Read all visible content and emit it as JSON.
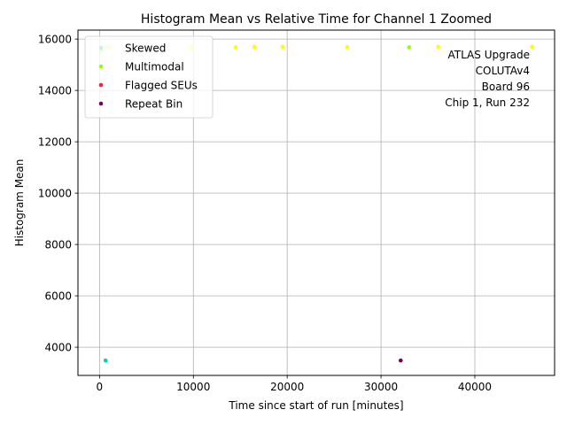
{
  "chart_data": {
    "type": "scatter",
    "title": "Histogram Mean vs Relative Time for Channel 1 Zoomed",
    "xlabel": "Time since start of run [minutes]",
    "ylabel": "Histogram Mean",
    "xlim": [
      -2300,
      48500
    ],
    "ylim": [
      2900,
      16350
    ],
    "xticks": [
      0,
      10000,
      20000,
      30000,
      40000
    ],
    "yticks": [
      4000,
      6000,
      8000,
      10000,
      12000,
      14000,
      16000
    ],
    "grid": true,
    "legend_position": "top-left",
    "annotation": [
      "ATLAS Upgrade",
      "COLUTAv4",
      "Board 96",
      "Chip 1, Run 232"
    ],
    "series": [
      {
        "name": "",
        "color": "#ffff00",
        "points": [
          [
            200,
            15680
          ],
          [
            700,
            15690
          ],
          [
            1100,
            15690
          ],
          [
            9800,
            15690
          ],
          [
            14500,
            15680
          ],
          [
            16500,
            15700
          ],
          [
            19500,
            15700
          ],
          [
            26400,
            15690
          ],
          [
            36100,
            15700
          ],
          [
            46100,
            15700
          ]
        ]
      },
      {
        "name": "",
        "color": "#00d2b0",
        "points": [
          [
            650,
            3480
          ]
        ]
      },
      {
        "name": "Skewed",
        "color": "#c8f0f0",
        "points": [
          [
            350,
            15690
          ],
          [
            900,
            15700
          ]
        ]
      },
      {
        "name": "Multimodal",
        "color": "#99ff00",
        "points": [
          [
            150,
            15570
          ],
          [
            33000,
            15680
          ]
        ]
      },
      {
        "name": "Flagged SEUs",
        "color": "#ff1a40",
        "points": []
      },
      {
        "name": "Repeat Bin",
        "color": "#7a005a",
        "points": [
          [
            32100,
            3480
          ]
        ]
      }
    ]
  }
}
